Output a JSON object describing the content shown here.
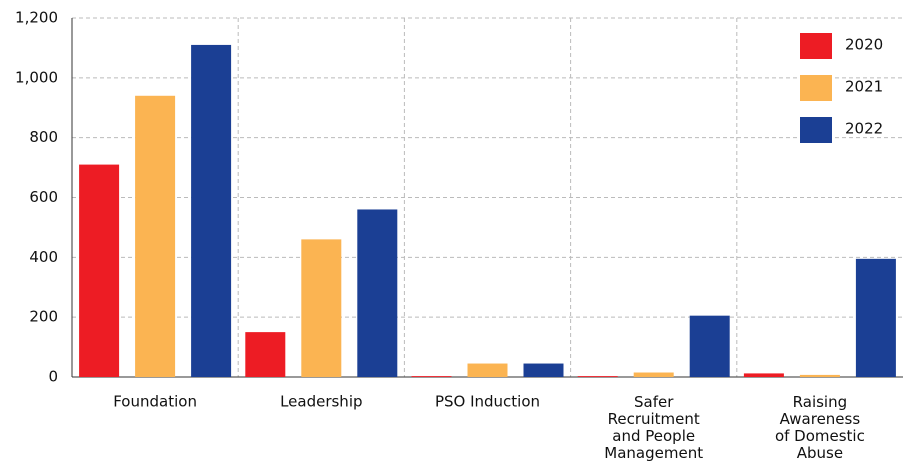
{
  "chart_data": {
    "type": "bar",
    "categories": [
      "Foundation",
      "Leadership",
      "PSO Induction",
      "Safer Recruitment and People Management",
      "Raising Awareness of Domestic Abuse"
    ],
    "series": [
      {
        "name": "2020",
        "color": "#ed1c24",
        "values": [
          710,
          150,
          3,
          3,
          12
        ]
      },
      {
        "name": "2021",
        "color": "#fbb452",
        "values": [
          940,
          460,
          45,
          15,
          7
        ]
      },
      {
        "name": "2022",
        "color": "#1b3f94",
        "values": [
          1110,
          560,
          45,
          205,
          395
        ]
      }
    ],
    "ylim": [
      0,
      1200
    ],
    "yticks": [
      0,
      200,
      400,
      600,
      800,
      {
        "value": 1000,
        "label": "1,000"
      },
      {
        "value": 1200,
        "label": "1,200"
      }
    ],
    "grid": true,
    "legend": "top-right"
  }
}
